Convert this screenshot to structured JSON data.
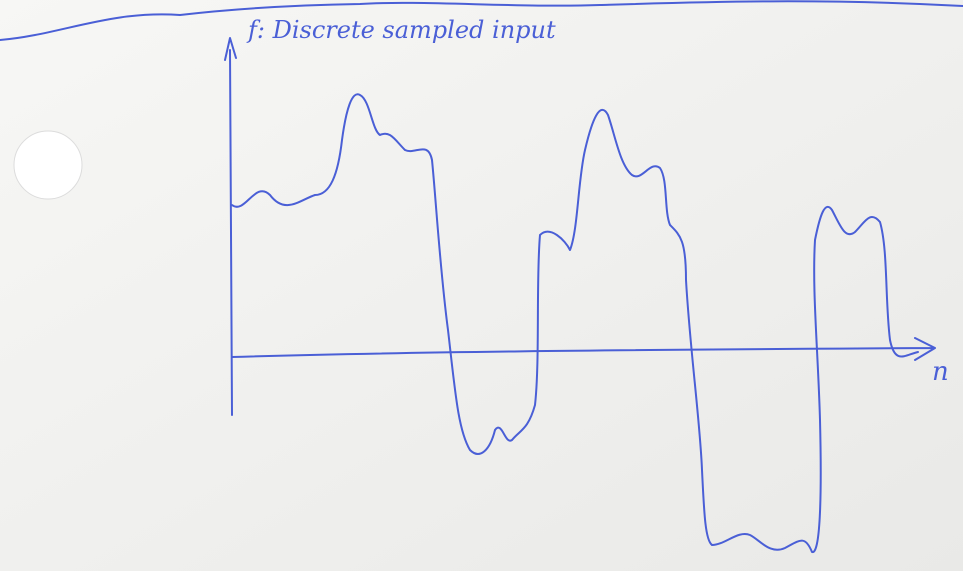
{
  "axis_labels": {
    "y": "f: Discrete sampled input",
    "x": "n"
  }
}
